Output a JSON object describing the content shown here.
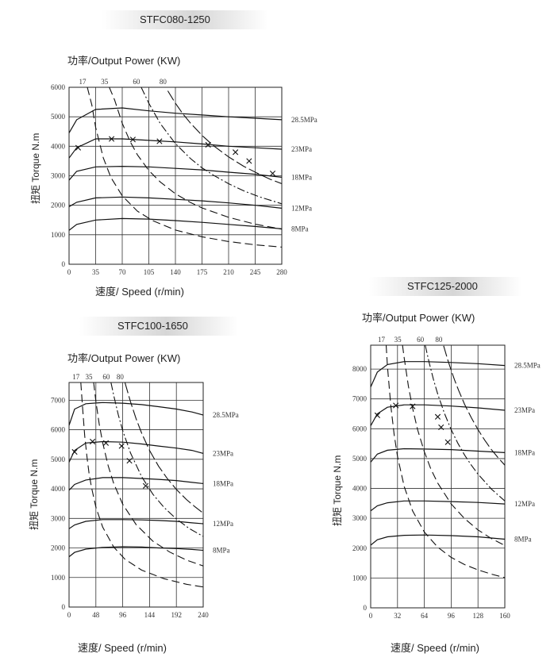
{
  "chart_data": [
    {
      "type": "line",
      "title": "STFC080-1250",
      "power_label": "功率/Output Power (KW)",
      "xlabel": "速度/ Speed (r/min)",
      "ylabel": "扭矩 Torque N.m",
      "xlim": [
        0,
        280
      ],
      "ylim": [
        0,
        6000
      ],
      "x_ticks": [
        "0",
        "35",
        "70",
        "105",
        "140",
        "175",
        "210",
        "245",
        "280"
      ],
      "y_ticks": [
        "0",
        "1000",
        "2000",
        "3000",
        "4000",
        "5000",
        "6000"
      ],
      "series": [
        {
          "name": "28.5MPa",
          "x": [
            0,
            10,
            35,
            70,
            105,
            140,
            175,
            210,
            245,
            280
          ],
          "y": [
            4450,
            4900,
            5250,
            5300,
            5200,
            5120,
            5060,
            5000,
            4950,
            4900
          ]
        },
        {
          "name": "23MPa",
          "x": [
            0,
            10,
            35,
            70,
            105,
            140,
            175,
            210,
            245,
            280
          ],
          "y": [
            3600,
            3950,
            4250,
            4250,
            4200,
            4150,
            4080,
            4000,
            3950,
            3900
          ]
        },
        {
          "name": "18MPa",
          "x": [
            0,
            10,
            35,
            70,
            105,
            140,
            175,
            210,
            245,
            280
          ],
          "y": [
            2850,
            3150,
            3300,
            3320,
            3300,
            3250,
            3200,
            3120,
            3050,
            2950
          ]
        },
        {
          "name": "12MPa",
          "x": [
            0,
            10,
            35,
            70,
            105,
            140,
            175,
            210,
            245,
            280
          ],
          "y": [
            1950,
            2100,
            2250,
            2280,
            2250,
            2200,
            2150,
            2080,
            2000,
            1900
          ]
        },
        {
          "name": "8MPa",
          "x": [
            0,
            10,
            35,
            70,
            105,
            140,
            175,
            210,
            245,
            280
          ],
          "y": [
            1150,
            1350,
            1500,
            1550,
            1530,
            1480,
            1420,
            1350,
            1280,
            1200
          ]
        }
      ],
      "power_curves": [
        {
          "name": "17",
          "x": [
            24,
            30,
            35,
            45,
            55,
            70,
            90,
            110,
            140,
            175,
            210,
            245,
            280
          ],
          "y": [
            6000,
            5400,
            4640,
            3610,
            2950,
            2320,
            1800,
            1480,
            1160,
            930,
            770,
            660,
            580
          ]
        },
        {
          "name": "35",
          "x": [
            53,
            60,
            70,
            80,
            90,
            105,
            120,
            140,
            160,
            175,
            210,
            245,
            280
          ],
          "y": [
            6000,
            5570,
            4780,
            4180,
            3710,
            3180,
            2790,
            2390,
            2090,
            1910,
            1590,
            1360,
            1190
          ]
        },
        {
          "name": "60",
          "x": [
            95,
            105,
            120,
            140,
            160,
            175,
            190,
            210,
            230,
            250,
            280
          ],
          "y": [
            6000,
            5460,
            4770,
            4090,
            3580,
            3270,
            3020,
            2730,
            2490,
            2290,
            2050
          ]
        },
        {
          "name": "80",
          "x": [
            130,
            140,
            150,
            160,
            175,
            190,
            210,
            230,
            250,
            265,
            280
          ],
          "y": [
            5880,
            5460,
            5090,
            4780,
            4370,
            4020,
            3640,
            3320,
            3060,
            2880,
            2730
          ]
        }
      ],
      "markers": [
        {
          "x": 12,
          "y": 3950
        },
        {
          "x": 56,
          "y": 4250
        },
        {
          "x": 84,
          "y": 4230
        },
        {
          "x": 119,
          "y": 4170
        },
        {
          "x": 183,
          "y": 4050
        },
        {
          "x": 219,
          "y": 3800
        },
        {
          "x": 237,
          "y": 3500
        },
        {
          "x": 268,
          "y": 3080
        }
      ]
    },
    {
      "type": "line",
      "title": "STFC100-1650",
      "power_label": "功率/Output Power (KW)",
      "xlabel": "速度/ Speed (r/min)",
      "ylabel": "扭矩 Torque N.m",
      "xlim": [
        0,
        240
      ],
      "ylim": [
        0,
        7600
      ],
      "x_ticks": [
        "0",
        "48",
        "96",
        "144",
        "192",
        "240"
      ],
      "y_ticks": [
        "0",
        "1000",
        "2000",
        "3000",
        "4000",
        "5000",
        "6000",
        "7000"
      ],
      "series": [
        {
          "name": "28.5MPa",
          "x": [
            0,
            10,
            30,
            60,
            96,
            130,
            160,
            192,
            220,
            240
          ],
          "y": [
            6150,
            6700,
            6880,
            6920,
            6900,
            6850,
            6780,
            6700,
            6600,
            6500
          ]
        },
        {
          "name": "23MPa",
          "x": [
            0,
            10,
            30,
            60,
            96,
            130,
            160,
            192,
            220,
            240
          ],
          "y": [
            4900,
            5300,
            5550,
            5600,
            5580,
            5520,
            5450,
            5380,
            5300,
            5200
          ]
        },
        {
          "name": "18MPa",
          "x": [
            0,
            10,
            30,
            60,
            96,
            130,
            160,
            192,
            220,
            240
          ],
          "y": [
            3950,
            4150,
            4300,
            4380,
            4380,
            4350,
            4320,
            4280,
            4220,
            4180
          ]
        },
        {
          "name": "12MPa",
          "x": [
            0,
            10,
            30,
            60,
            96,
            130,
            160,
            192,
            220,
            240
          ],
          "y": [
            2650,
            2780,
            2900,
            2960,
            2960,
            2950,
            2930,
            2900,
            2850,
            2820
          ]
        },
        {
          "name": "8MPa",
          "x": [
            0,
            10,
            30,
            60,
            96,
            130,
            160,
            192,
            220,
            240
          ],
          "y": [
            1700,
            1850,
            1960,
            2020,
            2040,
            2030,
            2000,
            1980,
            1950,
            1920
          ]
        }
      ],
      "power_curves": [
        {
          "name": "17",
          "x": [
            21,
            24,
            28,
            32,
            36,
            40,
            48,
            60,
            80,
            100,
            130,
            170,
            210,
            240
          ],
          "y": [
            7600,
            6800,
            5800,
            5100,
            4500,
            4060,
            3380,
            2710,
            2030,
            1620,
            1250,
            960,
            770,
            680
          ]
        },
        {
          "name": "35",
          "x": [
            44,
            48,
            54,
            60,
            70,
            80,
            96,
            120,
            150,
            180,
            210,
            240
          ],
          "y": [
            7600,
            6960,
            6190,
            5570,
            4780,
            4180,
            3480,
            2790,
            2230,
            1860,
            1590,
            1390
          ]
        },
        {
          "name": "60",
          "x": [
            75,
            80,
            88,
            96,
            110,
            130,
            150,
            170,
            192,
            215,
            240
          ],
          "y": [
            7600,
            7160,
            6510,
            5970,
            5210,
            4410,
            3820,
            3370,
            2980,
            2660,
            2390
          ]
        },
        {
          "name": "80",
          "x": [
            100,
            110,
            120,
            130,
            144,
            160,
            175,
            192,
            210,
            225,
            240
          ],
          "y": [
            7600,
            6940,
            6370,
            5880,
            5300,
            4770,
            4370,
            3980,
            3640,
            3400,
            3180
          ]
        }
      ],
      "markers": [
        {
          "x": 10,
          "y": 5250
        },
        {
          "x": 42,
          "y": 5600
        },
        {
          "x": 66,
          "y": 5550
        },
        {
          "x": 94,
          "y": 5450
        },
        {
          "x": 108,
          "y": 4950
        },
        {
          "x": 137,
          "y": 4100
        }
      ]
    },
    {
      "type": "line",
      "title": "STFC125-2000",
      "power_label": "功率/Output Power (KW)",
      "xlabel": "速度/ Speed (r/min)",
      "ylabel": "扭矩 Torque N.m",
      "xlim": [
        0,
        160
      ],
      "ylim": [
        0,
        8800
      ],
      "x_ticks": [
        "0",
        "32",
        "64",
        "96",
        "128",
        "160"
      ],
      "y_ticks": [
        "0",
        "1000",
        "2000",
        "3000",
        "4000",
        "5000",
        "6000",
        "7000",
        "8000"
      ],
      "series": [
        {
          "name": "28.5MPa",
          "x": [
            0,
            8,
            20,
            40,
            64,
            96,
            128,
            160
          ],
          "y": [
            7400,
            7900,
            8150,
            8250,
            8250,
            8220,
            8180,
            8120
          ]
        },
        {
          "name": "23MPa",
          "x": [
            0,
            8,
            20,
            40,
            64,
            96,
            128,
            160
          ],
          "y": [
            6100,
            6500,
            6720,
            6800,
            6800,
            6760,
            6700,
            6620
          ]
        },
        {
          "name": "18MPa",
          "x": [
            0,
            8,
            20,
            40,
            64,
            96,
            128,
            160
          ],
          "y": [
            4880,
            5150,
            5280,
            5330,
            5320,
            5300,
            5250,
            5200
          ]
        },
        {
          "name": "12MPa",
          "x": [
            0,
            8,
            20,
            40,
            64,
            96,
            128,
            160
          ],
          "y": [
            3250,
            3420,
            3520,
            3580,
            3580,
            3560,
            3530,
            3480
          ]
        },
        {
          "name": "8MPa",
          "x": [
            0,
            8,
            20,
            40,
            64,
            96,
            128,
            160
          ],
          "y": [
            2100,
            2280,
            2380,
            2430,
            2440,
            2420,
            2380,
            2300
          ]
        }
      ],
      "power_curves": [
        {
          "name": "17",
          "x": [
            18.5,
            20,
            24,
            28,
            32,
            40,
            50,
            64,
            80,
            96,
            112,
            128,
            144,
            160
          ],
          "y": [
            8800,
            8100,
            6760,
            5800,
            5070,
            4060,
            3250,
            2540,
            2030,
            1690,
            1450,
            1270,
            1130,
            1010
          ]
        },
        {
          "name": "35",
          "x": [
            38,
            40,
            45,
            50,
            56,
            64,
            72,
            80,
            96,
            112,
            128,
            144,
            160
          ],
          "y": [
            8800,
            8360,
            7430,
            6690,
            5970,
            5230,
            4640,
            4180,
            3480,
            2990,
            2610,
            2320,
            2090
          ]
        },
        {
          "name": "60",
          "x": [
            65,
            70,
            75,
            80,
            88,
            96,
            104,
            112,
            120,
            128,
            144,
            160
          ],
          "y": [
            8800,
            8190,
            7640,
            7160,
            6510,
            5970,
            5510,
            5120,
            4780,
            4480,
            3980,
            3580
          ]
        },
        {
          "name": "80",
          "x": [
            87,
            92,
            96,
            100,
            105,
            112,
            120,
            128,
            136,
            144,
            152,
            160
          ],
          "y": [
            8780,
            8300,
            7960,
            7640,
            7280,
            6820,
            6370,
            5970,
            5620,
            5300,
            5030,
            4780
          ]
        }
      ],
      "markers": [
        {
          "x": 8,
          "y": 6450
        },
        {
          "x": 30,
          "y": 6780
        },
        {
          "x": 50,
          "y": 6750
        },
        {
          "x": 80,
          "y": 6400
        },
        {
          "x": 84,
          "y": 6050
        },
        {
          "x": 92,
          "y": 5550
        }
      ]
    }
  ]
}
